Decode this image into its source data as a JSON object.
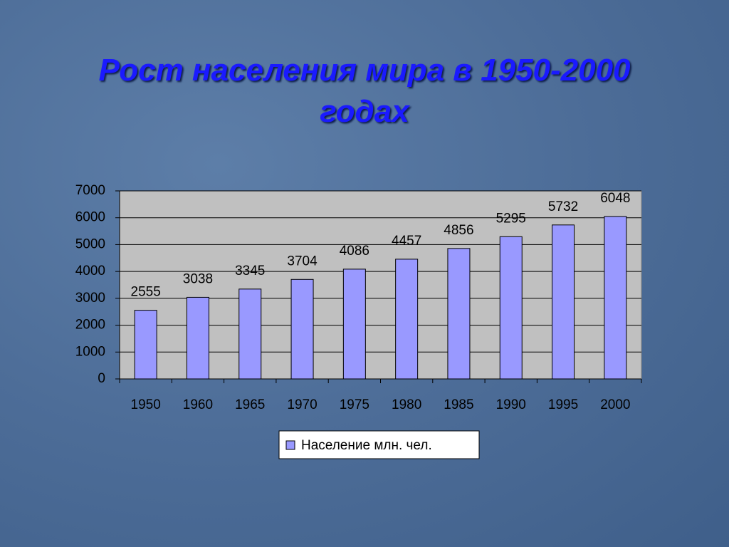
{
  "chart_data": {
    "type": "bar",
    "title": "Рост населения мира в 1950-2000 годах",
    "categories": [
      "1950",
      "1960",
      "1965",
      "1970",
      "1975",
      "1980",
      "1985",
      "1990",
      "1995",
      "2000"
    ],
    "series": [
      {
        "name": "Население млн. чел.",
        "color": "#9999ff",
        "values": [
          2555,
          3038,
          3345,
          3704,
          4086,
          4457,
          4856,
          5295,
          5732,
          6048
        ]
      }
    ],
    "ylim": [
      0,
      7000
    ],
    "yticks": [
      0,
      1000,
      2000,
      3000,
      4000,
      5000,
      6000,
      7000
    ],
    "grid": true,
    "legend": "bottom"
  }
}
